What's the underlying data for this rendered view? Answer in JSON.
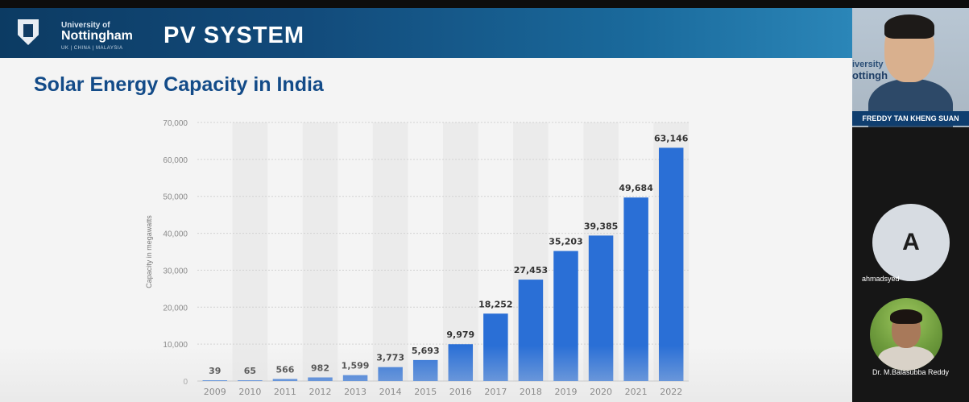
{
  "slide": {
    "university_line1": "University of",
    "university_line2": "Nottingham",
    "university_campuses": "UK | CHINA | MALAYSIA",
    "header_title": "PV SYSTEM",
    "heading": "Solar Energy Capacity in India"
  },
  "chart_data": {
    "type": "bar",
    "categories": [
      "2009",
      "2010",
      "2011",
      "2012",
      "2013",
      "2014",
      "2015",
      "2016",
      "2017",
      "2018",
      "2019",
      "2020",
      "2021",
      "2022"
    ],
    "values": [
      39,
      65,
      566,
      982,
      1599,
      3773,
      5693,
      9979,
      18252,
      27453,
      35203,
      39385,
      49684,
      63146
    ],
    "value_labels": [
      "39",
      "65",
      "566",
      "982",
      "1,599",
      "3,773",
      "5,693",
      "9,979",
      "18,252",
      "27,453",
      "35,203",
      "39,385",
      "49,684",
      "63,146"
    ],
    "y_ticks": [
      0,
      10000,
      20000,
      30000,
      40000,
      50000,
      60000,
      70000
    ],
    "y_tick_labels": [
      "0",
      "10,000",
      "20,000",
      "30,000",
      "40,000",
      "50,000",
      "60,000",
      "70,000"
    ],
    "ylabel": "Capacity in megawatts",
    "ylim": [
      0,
      70000
    ],
    "grid": true,
    "bar_color": "#2a6fd6"
  },
  "participants": {
    "video_name": "FREDDY TAN KHENG SUAN",
    "video_bg_text1": "iversity",
    "video_bg_text2": "ottingh",
    "p2_initial": "A",
    "p2_name": "ahmadsyed",
    "p3_name": "Dr. M.Balasubba Reddy"
  }
}
